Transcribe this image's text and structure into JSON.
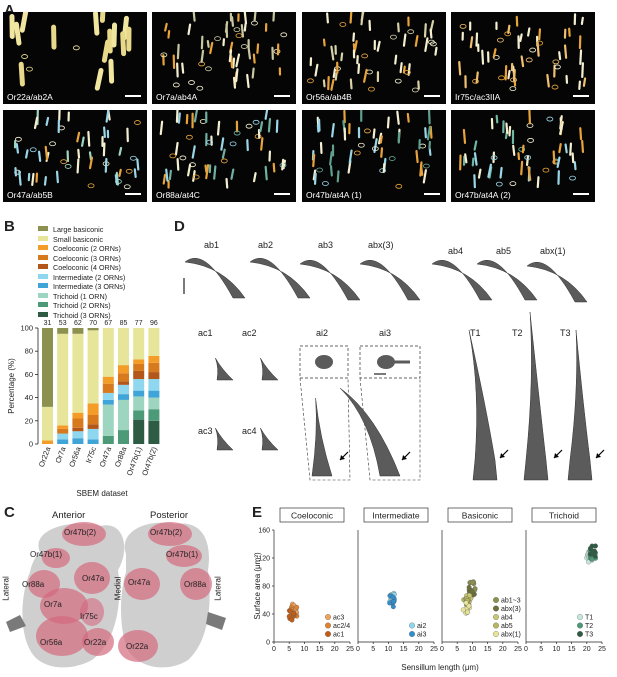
{
  "panels": {
    "a": "A",
    "b": "B",
    "c": "C",
    "d": "D",
    "e": "E"
  },
  "panelA": {
    "tiles": [
      "Or22a/ab2A",
      "Or7a/ab4A",
      "Or56a/ab4B",
      "Ir75c/ac3IIA",
      "Or47a/ab5B",
      "Or88a/at4C",
      "Or47b/at4A (1)",
      "Or47b/at4A (2)"
    ]
  },
  "panelB": {
    "legend": [
      {
        "label": "Large basiconic",
        "color": "#8d9150"
      },
      {
        "label": "Small basiconic",
        "color": "#e6e59a"
      },
      {
        "label": "Coeloconic (2 ORNs)",
        "color": "#f39c28"
      },
      {
        "label": "Coeloconic (3 ORNs)",
        "color": "#d77a1e"
      },
      {
        "label": "Coeloconic (4 ORNs)",
        "color": "#b2561a"
      },
      {
        "label": "Intermediate (2 ORNs)",
        "color": "#8ed7ef"
      },
      {
        "label": "Intermediate (3 ORNs)",
        "color": "#3fa4d8"
      },
      {
        "label": "Trichoid (1 ORN)",
        "color": "#9ed5c0"
      },
      {
        "label": "Trichoid (2 ORNs)",
        "color": "#4c9a78"
      },
      {
        "label": "Trichoid (3 ORNs)",
        "color": "#2d5b44"
      }
    ],
    "ylabel": "Percentage (%)",
    "xlabel": "SBEM dataset",
    "yticks": [
      "0",
      "20",
      "40",
      "60",
      "80",
      "100"
    ]
  },
  "chart_data": {
    "type": "bar",
    "stacked": true,
    "categories": [
      "Or22a",
      "Or7a",
      "Or56a",
      "Ir75c",
      "Or47a",
      "Or88a",
      "Or47b(1)",
      "Or47b(2)"
    ],
    "counts": [
      "31",
      "53",
      "62",
      "70",
      "67",
      "85",
      "77",
      "96"
    ],
    "ylim": [
      0,
      100
    ],
    "ylabel": "Percentage (%)",
    "xlabel": "SBEM dataset",
    "series": [
      {
        "name": "Trichoid (3 ORNs)",
        "values": [
          0,
          0,
          0,
          0,
          0,
          0,
          21,
          20
        ]
      },
      {
        "name": "Trichoid (2 ORNs)",
        "values": [
          0,
          0,
          0,
          0,
          7,
          12,
          8,
          10
        ]
      },
      {
        "name": "Trichoid (1 ORN)",
        "values": [
          0,
          0,
          0,
          0,
          27,
          26,
          12,
          10
        ]
      },
      {
        "name": "Intermediate (3 ORNs)",
        "values": [
          0,
          4,
          5,
          4,
          4,
          5,
          5,
          6
        ]
      },
      {
        "name": "Intermediate (2 ORNs)",
        "values": [
          0,
          5,
          6,
          9,
          6,
          8,
          10,
          10
        ]
      },
      {
        "name": "Coeloconic (4 ORNs)",
        "values": [
          0,
          0,
          3,
          4,
          0,
          3,
          7,
          6
        ]
      },
      {
        "name": "Coeloconic (3 ORNs)",
        "values": [
          0,
          4,
          8,
          8,
          8,
          7,
          6,
          8
        ]
      },
      {
        "name": "Coeloconic (2 ORNs)",
        "values": [
          3,
          3,
          5,
          10,
          6,
          7,
          4,
          6
        ]
      },
      {
        "name": "Small basiconic",
        "values": [
          29,
          79,
          68,
          63,
          42,
          32,
          27,
          24
        ]
      },
      {
        "name": "Large basiconic",
        "values": [
          68,
          5,
          5,
          2,
          0,
          0,
          0,
          0
        ]
      }
    ]
  },
  "panelD": {
    "labels": [
      "ab1",
      "ab2",
      "ab3",
      "abx(3)",
      "ab4",
      "ab5",
      "abx(1)",
      "ac1",
      "ac2",
      "ac3",
      "ac4",
      "ai2",
      "ai3",
      "T1",
      "T2",
      "T3"
    ]
  },
  "panelC": {
    "anterior": "Anterior",
    "posterior": "Posterior",
    "lateral": "Lateral",
    "medial": "Medial",
    "lateral2": "Lateral",
    "left_labels": [
      "Or47b(2)",
      "Or47b(1)",
      "Or88a",
      "Or47a",
      "Or7a",
      "Ir75c",
      "Or56a",
      "Or22a"
    ],
    "right_labels": [
      "Or47b(2)",
      "Or47b(1)",
      "Or47a",
      "Or88a",
      "Or22a"
    ]
  },
  "panelE": {
    "titles": [
      "Coeloconic",
      "Intermediate",
      "Basiconic",
      "Trichoid"
    ],
    "ylabel": "Surface area (μm²)",
    "xlabel": "Sensillum length (μm)",
    "yticks": [
      "0",
      "40",
      "80",
      "120",
      "160"
    ],
    "xticks": [
      "0",
      "5",
      "10",
      "15",
      "20",
      "25"
    ],
    "legends": [
      [
        {
          "label": "ac3",
          "color": "#f0a35c"
        },
        {
          "label": "ac2/4",
          "color": "#e0822e"
        },
        {
          "label": "ac1",
          "color": "#c25d18"
        }
      ],
      [
        {
          "label": "ai2",
          "color": "#8ed7ef"
        },
        {
          "label": "ai3",
          "color": "#2f8fce"
        }
      ],
      [
        {
          "label": "ab1~3",
          "color": "#8d9150"
        },
        {
          "label": "abx(3)",
          "color": "#6d7038"
        },
        {
          "label": "ab4",
          "color": "#c9c772"
        },
        {
          "label": "ab5",
          "color": "#b7b560"
        },
        {
          "label": "abx(1)",
          "color": "#e6e59a"
        }
      ],
      [
        {
          "label": "T1",
          "color": "#c7e8dc"
        },
        {
          "label": "T2",
          "color": "#4c9a78"
        },
        {
          "label": "T3",
          "color": "#2d5b44"
        }
      ]
    ]
  }
}
